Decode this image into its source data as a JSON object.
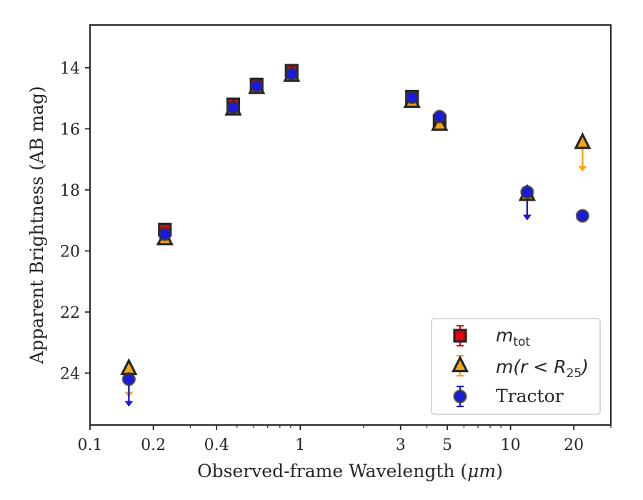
{
  "chart_data": {
    "type": "scatter",
    "title": "",
    "xlabel_prefix": "Observed-frame Wavelength (",
    "xlabel_unit": "μm",
    "xlabel_suffix": ")",
    "ylabel": "Apparent Brightness (AB mag)",
    "xscale": "log",
    "xlim": [
      0.1,
      30
    ],
    "ylim": [
      25.7,
      12.6
    ],
    "y_inverted": true,
    "xticks": [
      {
        "value": 0.1,
        "label": "0.1"
      },
      {
        "value": 0.2,
        "label": "0.2"
      },
      {
        "value": 0.4,
        "label": "0.4"
      },
      {
        "value": 1,
        "label": "1"
      },
      {
        "value": 3,
        "label": "3"
      },
      {
        "value": 5,
        "label": "5"
      },
      {
        "value": 10,
        "label": "10"
      },
      {
        "value": 20,
        "label": "20"
      }
    ],
    "yticks": [
      {
        "value": 14,
        "label": "14"
      },
      {
        "value": 16,
        "label": "16"
      },
      {
        "value": 18,
        "label": "18"
      },
      {
        "value": 20,
        "label": "20"
      },
      {
        "value": 22,
        "label": "22"
      },
      {
        "value": 24,
        "label": "24"
      }
    ],
    "legend_position": "lower-right",
    "series": [
      {
        "key": "mtot",
        "legend_main": "m",
        "legend_sub": "tot",
        "marker": "square",
        "color": "#e8000b",
        "points": [
          {
            "x": 0.227,
            "y": 19.3
          },
          {
            "x": 0.48,
            "y": 15.2
          },
          {
            "x": 0.62,
            "y": 14.55
          },
          {
            "x": 0.91,
            "y": 14.1
          },
          {
            "x": 3.4,
            "y": 14.95
          },
          {
            "x": 4.6,
            "y": 15.75
          }
        ]
      },
      {
        "key": "mr25",
        "legend_main": "m(r < R",
        "legend_sub": "25",
        "legend_tail": ")",
        "marker": "triangle",
        "color": "#f5a50f",
        "points": [
          {
            "x": 0.153,
            "y": 23.85,
            "upper_limit": true,
            "arrow_to": 24.8
          },
          {
            "x": 0.227,
            "y": 19.6
          },
          {
            "x": 0.48,
            "y": 15.35
          },
          {
            "x": 0.62,
            "y": 14.65
          },
          {
            "x": 0.91,
            "y": 14.25
          },
          {
            "x": 3.4,
            "y": 15.1
          },
          {
            "x": 4.6,
            "y": 15.85
          },
          {
            "x": 12.0,
            "y": 18.15,
            "upper_limit": true,
            "arrow_to": 19.0
          },
          {
            "x": 22.0,
            "y": 16.45,
            "upper_limit": true,
            "arrow_to": 17.4
          }
        ]
      },
      {
        "key": "tractor",
        "legend_main": "Tractor",
        "marker": "circle",
        "color": "#1a1adf",
        "points": [
          {
            "x": 0.153,
            "y": 24.2,
            "upper_limit": true,
            "arrow_to": 25.1
          },
          {
            "x": 0.227,
            "y": 19.45
          },
          {
            "x": 0.48,
            "y": 15.3
          },
          {
            "x": 0.62,
            "y": 14.6
          },
          {
            "x": 0.91,
            "y": 14.2
          },
          {
            "x": 3.4,
            "y": 14.97
          },
          {
            "x": 4.6,
            "y": 15.6
          },
          {
            "x": 12.0,
            "y": 18.07,
            "upper_limit": true,
            "arrow_to": 19.0
          },
          {
            "x": 22.0,
            "y": 18.85
          }
        ]
      }
    ]
  }
}
